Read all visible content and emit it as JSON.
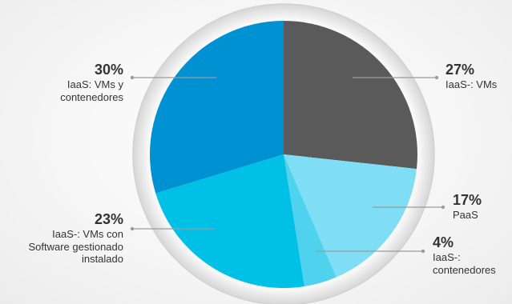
{
  "chart_data": {
    "type": "pie",
    "start_angle_deg": 0,
    "direction": "clockwise",
    "slices": [
      {
        "label": "IaaS-: VMs",
        "value": 27,
        "value_label": "27%",
        "color": "#5a5a5a"
      },
      {
        "label": "PaaS",
        "value": 17,
        "value_label": "17%",
        "color": "#7fdef5"
      },
      {
        "label": "IaaS-:\ncontenedores",
        "value": 4,
        "value_label": "4%",
        "color": "#4fd2ee"
      },
      {
        "label": "IaaS-: VMs con\nSoftware gestionado\ninstalado",
        "value": 23,
        "value_label": "23%",
        "color": "#00c0e6"
      },
      {
        "label": "IaaS: VMs y\ncontenedores",
        "value": 30,
        "value_label": "30%",
        "color": "#0091d2"
      }
    ],
    "ring_color": "#d9d9d9",
    "leader_color": "#9b9b9b"
  }
}
